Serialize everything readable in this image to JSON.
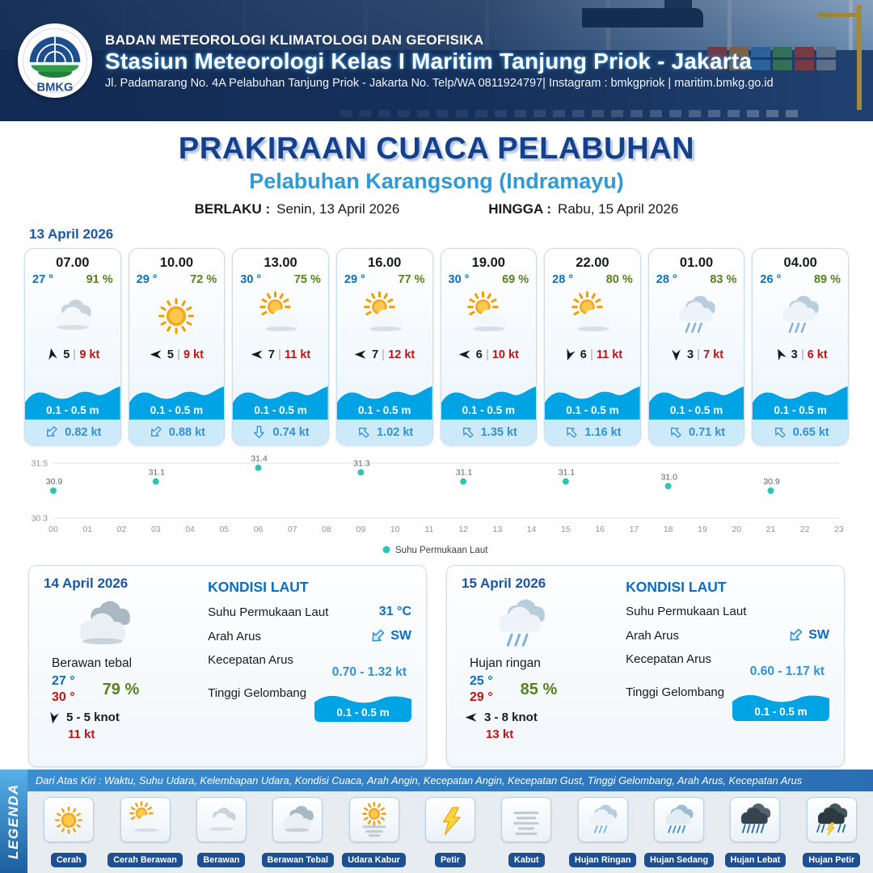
{
  "header": {
    "org": "BADAN METEOROLOGI KLIMATOLOGI DAN GEOFISIKA",
    "station": "Stasiun Meteorologi Kelas I Maritim Tanjung Priok - Jakarta",
    "address": "Jl. Padamarang No. 4A Pelabuhan Tanjung Priok - Jakarta No. Telp/WA 0811924797| Instagram : bmkgpriok | maritim.bmkg.go.id",
    "logo_text": "BMKG"
  },
  "title": {
    "main": "PRAKIRAAN CUACA PELABUHAN",
    "subtitle": "Pelabuhan Karangsong (Indramayu)",
    "valid_from_label": "BERLAKU :",
    "valid_from": "Senin, 13 April 2026",
    "valid_to_label": "HINGGA :",
    "valid_to": "Rabu, 15 April 2026"
  },
  "forecast": {
    "date": "13 April 2026",
    "cards": [
      {
        "time": "07.00",
        "temp": "27 °",
        "humidity": "91 %",
        "icon": "berawan",
        "wind_deg": -100,
        "wind": "5",
        "gust": "9 kt",
        "wave": "0.1 - 0.5 m",
        "current_deg": 135,
        "current": "0.82 kt"
      },
      {
        "time": "10.00",
        "temp": "29 °",
        "humidity": "72 %",
        "icon": "cerah",
        "wind_deg": 180,
        "wind": "5",
        "gust": "9 kt",
        "wave": "0.1 - 0.5 m",
        "current_deg": 135,
        "current": "0.88 kt"
      },
      {
        "time": "13.00",
        "temp": "30 °",
        "humidity": "75 %",
        "icon": "cerah-berawan",
        "wind_deg": 180,
        "wind": "7",
        "gust": "11 kt",
        "wave": "0.1 - 0.5 m",
        "current_deg": 90,
        "current": "0.74 kt"
      },
      {
        "time": "16.00",
        "temp": "29 °",
        "humidity": "77 %",
        "icon": "cerah-berawan",
        "wind_deg": 180,
        "wind": "7",
        "gust": "12 kt",
        "wave": "0.1 - 0.5 m",
        "current_deg": 225,
        "current": "1.02 kt"
      },
      {
        "time": "19.00",
        "temp": "30 °",
        "humidity": "69 %",
        "icon": "cerah-berawan",
        "wind_deg": 180,
        "wind": "6",
        "gust": "10 kt",
        "wave": "0.1 - 0.5 m",
        "current_deg": 225,
        "current": "1.35 kt"
      },
      {
        "time": "22.00",
        "temp": "28 °",
        "humidity": "80 %",
        "icon": "cerah-berawan",
        "wind_deg": 110,
        "wind": "6",
        "gust": "11 kt",
        "wave": "0.1 - 0.5 m",
        "current_deg": 225,
        "current": "1.16 kt"
      },
      {
        "time": "01.00",
        "temp": "28 °",
        "humidity": "83 %",
        "icon": "hujan-ringan",
        "wind_deg": 90,
        "wind": "3",
        "gust": "7 kt",
        "wave": "0.1 - 0.5 m",
        "current_deg": 225,
        "current": "0.71 kt"
      },
      {
        "time": "04.00",
        "temp": "26 °",
        "humidity": "89 %",
        "icon": "hujan-ringan",
        "wind_deg": -115,
        "wind": "3",
        "gust": "6 kt",
        "wave": "0.1 - 0.5 m",
        "current_deg": 225,
        "current": "0.65 kt"
      }
    ]
  },
  "daily": [
    {
      "date": "14 April 2026",
      "icon": "berawan-tebal",
      "condition": "Berawan tebal",
      "temp_min": "27 °",
      "temp_max": "30 °",
      "humidity": "79 %",
      "wind_deg": 100,
      "wind_range": "5  - 5 knot",
      "gust": "11 kt",
      "sea": {
        "heading": "KONDISI LAUT",
        "sst_label": "Suhu Permukaan Laut",
        "sst": "31 °C",
        "dir_label": "Arah Arus",
        "dir": "SW",
        "dir_deg": 135,
        "speed_label": "Kecepatan Arus",
        "speed": "0.70  - 1.32 kt",
        "wave_label": "Tinggi Gelombang",
        "wave": "0.1 - 0.5 m"
      }
    },
    {
      "date": "15 April 2026",
      "icon": "hujan-ringan",
      "condition": "Hujan ringan",
      "temp_min": "25 °",
      "temp_max": "29 °",
      "humidity": "85 %",
      "wind_deg": 180,
      "wind_range": "3  - 8 knot",
      "gust": "13 kt",
      "sea": {
        "heading": "KONDISI LAUT",
        "sst_label": "Suhu Permukaan Laut",
        "sst": "",
        "dir_label": "Arah Arus",
        "dir": "SW",
        "dir_deg": 135,
        "speed_label": "Kecepatan Arus",
        "speed": "0.60 - 1.17 kt",
        "wave_label": "Tinggi Gelombang",
        "wave": "0.1 - 0.5 m"
      }
    }
  ],
  "legend": {
    "title": "LEGENDA",
    "note": "Dari Atas Kiri : Waktu, Suhu Udara, Kelembapan Udara, Kondisi Cuaca, Arah Angin, Kecepatan Angin, Kecepatan Gust, Tinggi Gelombang, Arah Arus, Kecepatan Arus",
    "items": [
      {
        "label": "Cerah",
        "icon": "cerah"
      },
      {
        "label": "Cerah Berawan",
        "icon": "cerah-berawan"
      },
      {
        "label": "Berawan",
        "icon": "berawan"
      },
      {
        "label": "Berawan Tebal",
        "icon": "berawan-tebal"
      },
      {
        "label": "Udara Kabur",
        "icon": "udara-kabur"
      },
      {
        "label": "Petir",
        "icon": "petir"
      },
      {
        "label": "Kabut",
        "icon": "kabut"
      },
      {
        "label": "Hujan Ringan",
        "icon": "hujan-ringan"
      },
      {
        "label": "Hujan Sedang",
        "icon": "hujan-sedang"
      },
      {
        "label": "Hujan Lebat",
        "icon": "hujan-lebat"
      },
      {
        "label": "Hujan Petir",
        "icon": "hujan-petir"
      }
    ]
  },
  "chart_data": {
    "type": "scatter",
    "title": "Suhu Permukaan Laut",
    "x": [
      0,
      3,
      6,
      9,
      12,
      15,
      18,
      21
    ],
    "values": [
      30.9,
      31.1,
      31.4,
      31.3,
      31.1,
      31.1,
      31.0,
      30.9
    ],
    "x_ticks": [
      "00",
      "01",
      "02",
      "03",
      "04",
      "05",
      "06",
      "07",
      "08",
      "09",
      "10",
      "11",
      "12",
      "13",
      "14",
      "15",
      "16",
      "17",
      "18",
      "19",
      "20",
      "21",
      "22",
      "23"
    ],
    "ylim": [
      30.3,
      31.5
    ],
    "y_ticks": [
      31.5,
      30.3
    ],
    "legend": "Suhu Permukaan Laut",
    "point_color": "#2fc5b5",
    "grid": true,
    "legend_position": "bottom-center"
  },
  "colors": {
    "accent_navy": "#14408c",
    "accent_sky": "#2e9ad6",
    "temp_blue": "#0a6fc2",
    "humidity_green": "#55831c",
    "gust_red": "#c01414",
    "wave_blue": "#00a3e4"
  }
}
